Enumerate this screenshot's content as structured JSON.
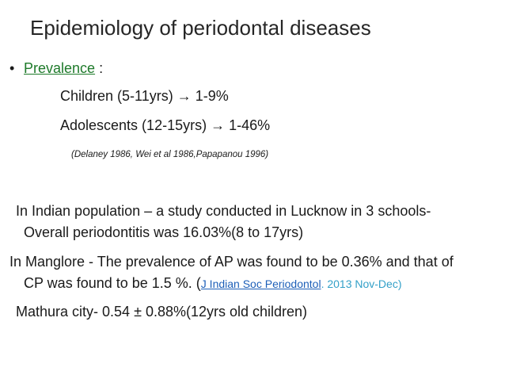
{
  "slide": {
    "title": "Epidemiology of periodontal diseases",
    "bullet": {
      "symbol": "•",
      "label": "Prevalence",
      "suffix": " :"
    },
    "rows": [
      {
        "label": "Children (5-11yrs) ",
        "arrow": "→",
        "value": " 1-9%"
      },
      {
        "label": "Adolescents (12-15yrs) ",
        "arrow": "→",
        "value": " 1-46%"
      }
    ],
    "citation": "(Delaney 1986, Wei et al 1986,Papapanou 1996)",
    "paragraphs": {
      "lucknow_line1": "In Indian population – a study conducted in Lucknow in 3 schools-",
      "lucknow_line2": "Overall periodontitis was 16.03%(8 to 17yrs)",
      "manglore_line1": "In Manglore - The prevalence of AP was found to be 0.36% and that of",
      "manglore_line2_prefix": "CP was found to be 1.5 %. (",
      "journal_link": "J Indian Soc Periodontol",
      "journal_date": ". 2013 Nov-Dec)",
      "mathura": "Mathura city- 0.54 ± 0.88%(12yrs old children)"
    },
    "colors": {
      "prevalence_link": "#1e7a2a",
      "journal_link": "#1d5fb8",
      "journal_date": "#33a0c8"
    }
  }
}
